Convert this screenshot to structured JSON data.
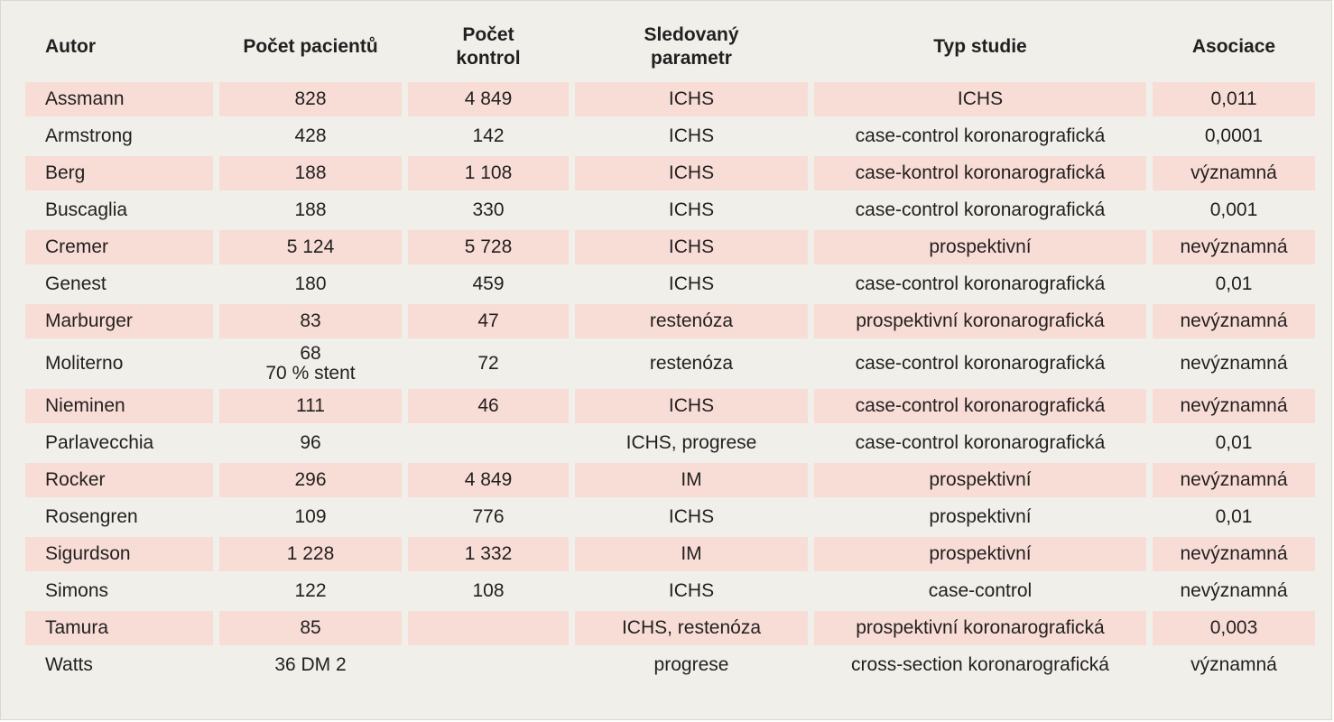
{
  "table": {
    "headers": [
      "Autor",
      "Počet pacientů",
      "Počet kontrol",
      "Sledovaný parametr",
      "Typ studie",
      "Asociace"
    ],
    "header_lines": [
      [
        "Autor"
      ],
      [
        "Počet pacientů"
      ],
      [
        "Počet",
        "kontrol"
      ],
      [
        "Sledovaný",
        "parametr"
      ],
      [
        "Typ studie"
      ],
      [
        "Asociace"
      ]
    ],
    "rows": [
      {
        "autor": "Assmann",
        "pacienti": "828",
        "pacienti_note": "",
        "kontroly": "4 849",
        "parametr": "ICHS",
        "typ": "ICHS",
        "asociace": "0,011",
        "shaded": true
      },
      {
        "autor": "Armstrong",
        "pacienti": "428",
        "pacienti_note": "",
        "kontroly": "142",
        "parametr": "ICHS",
        "typ": "case-control koronarografická",
        "asociace": "0,0001",
        "shaded": false
      },
      {
        "autor": "Berg",
        "pacienti": "188",
        "pacienti_note": "",
        "kontroly": "1 108",
        "parametr": "ICHS",
        "typ": "case-kontrol koronarografická",
        "asociace": "významná",
        "shaded": true
      },
      {
        "autor": "Buscaglia",
        "pacienti": "188",
        "pacienti_note": "",
        "kontroly": "330",
        "parametr": "ICHS",
        "typ": "case-control koronarografická",
        "asociace": "0,001",
        "shaded": false
      },
      {
        "autor": "Cremer",
        "pacienti": "5 124",
        "pacienti_note": "",
        "kontroly": "5 728",
        "parametr": "ICHS",
        "typ": "prospektivní",
        "asociace": "nevýznamná",
        "shaded": true
      },
      {
        "autor": "Genest",
        "pacienti": "180",
        "pacienti_note": "",
        "kontroly": "459",
        "parametr": "ICHS",
        "typ": "case-control koronarografická",
        "asociace": "0,01",
        "shaded": false
      },
      {
        "autor": "Marburger",
        "pacienti": "83",
        "pacienti_note": "",
        "kontroly": "47",
        "parametr": "restenóza",
        "typ": "prospektivní koronarografická",
        "asociace": "nevýznamná",
        "shaded": true
      },
      {
        "autor": "Moliterno",
        "pacienti": "68",
        "pacienti_note": "70 % stent",
        "kontroly": "72",
        "parametr": "restenóza",
        "typ": "case-control koronarografická",
        "asociace": "nevýznamná",
        "shaded": false
      },
      {
        "autor": "Nieminen",
        "pacienti": "111",
        "pacienti_note": "",
        "kontroly": "46",
        "parametr": "ICHS",
        "typ": "case-control koronarografická",
        "asociace": "nevýznamná",
        "shaded": true
      },
      {
        "autor": "Parlavecchia",
        "pacienti": "96",
        "pacienti_note": "",
        "kontroly": "",
        "parametr": "ICHS, progrese",
        "typ": "case-control koronarografická",
        "asociace": "0,01",
        "shaded": false
      },
      {
        "autor": "Rocker",
        "pacienti": "296",
        "pacienti_note": "",
        "kontroly": "4 849",
        "parametr": "IM",
        "typ": "prospektivní",
        "asociace": "nevýznamná",
        "shaded": true
      },
      {
        "autor": "Rosengren",
        "pacienti": "109",
        "pacienti_note": "",
        "kontroly": "776",
        "parametr": "ICHS",
        "typ": "prospektivní",
        "asociace": "0,01",
        "shaded": false
      },
      {
        "autor": "Sigurdson",
        "pacienti": "1 228",
        "pacienti_note": "",
        "kontroly": "1 332",
        "parametr": "IM",
        "typ": "prospektivní",
        "asociace": "nevýznamná",
        "shaded": true
      },
      {
        "autor": "Simons",
        "pacienti": "122",
        "pacienti_note": "",
        "kontroly": "108",
        "parametr": "ICHS",
        "typ": "case-control",
        "asociace": "nevýznamná",
        "shaded": false
      },
      {
        "autor": "Tamura",
        "pacienti": "85",
        "pacienti_note": "",
        "kontroly": "",
        "parametr": "ICHS, restenóza",
        "typ": "prospektivní koronarografická",
        "asociace": "0,003",
        "shaded": true
      },
      {
        "autor": "Watts",
        "pacienti": "36 DM 2",
        "pacienti_note": "",
        "kontroly": "",
        "parametr": "progrese",
        "typ": "cross-section koronarografická",
        "asociace": "významná",
        "shaded": false
      }
    ]
  },
  "colors": {
    "panel_background": "#f1efe9",
    "row_shade": "#f8ddd6",
    "text": "#231f20"
  }
}
